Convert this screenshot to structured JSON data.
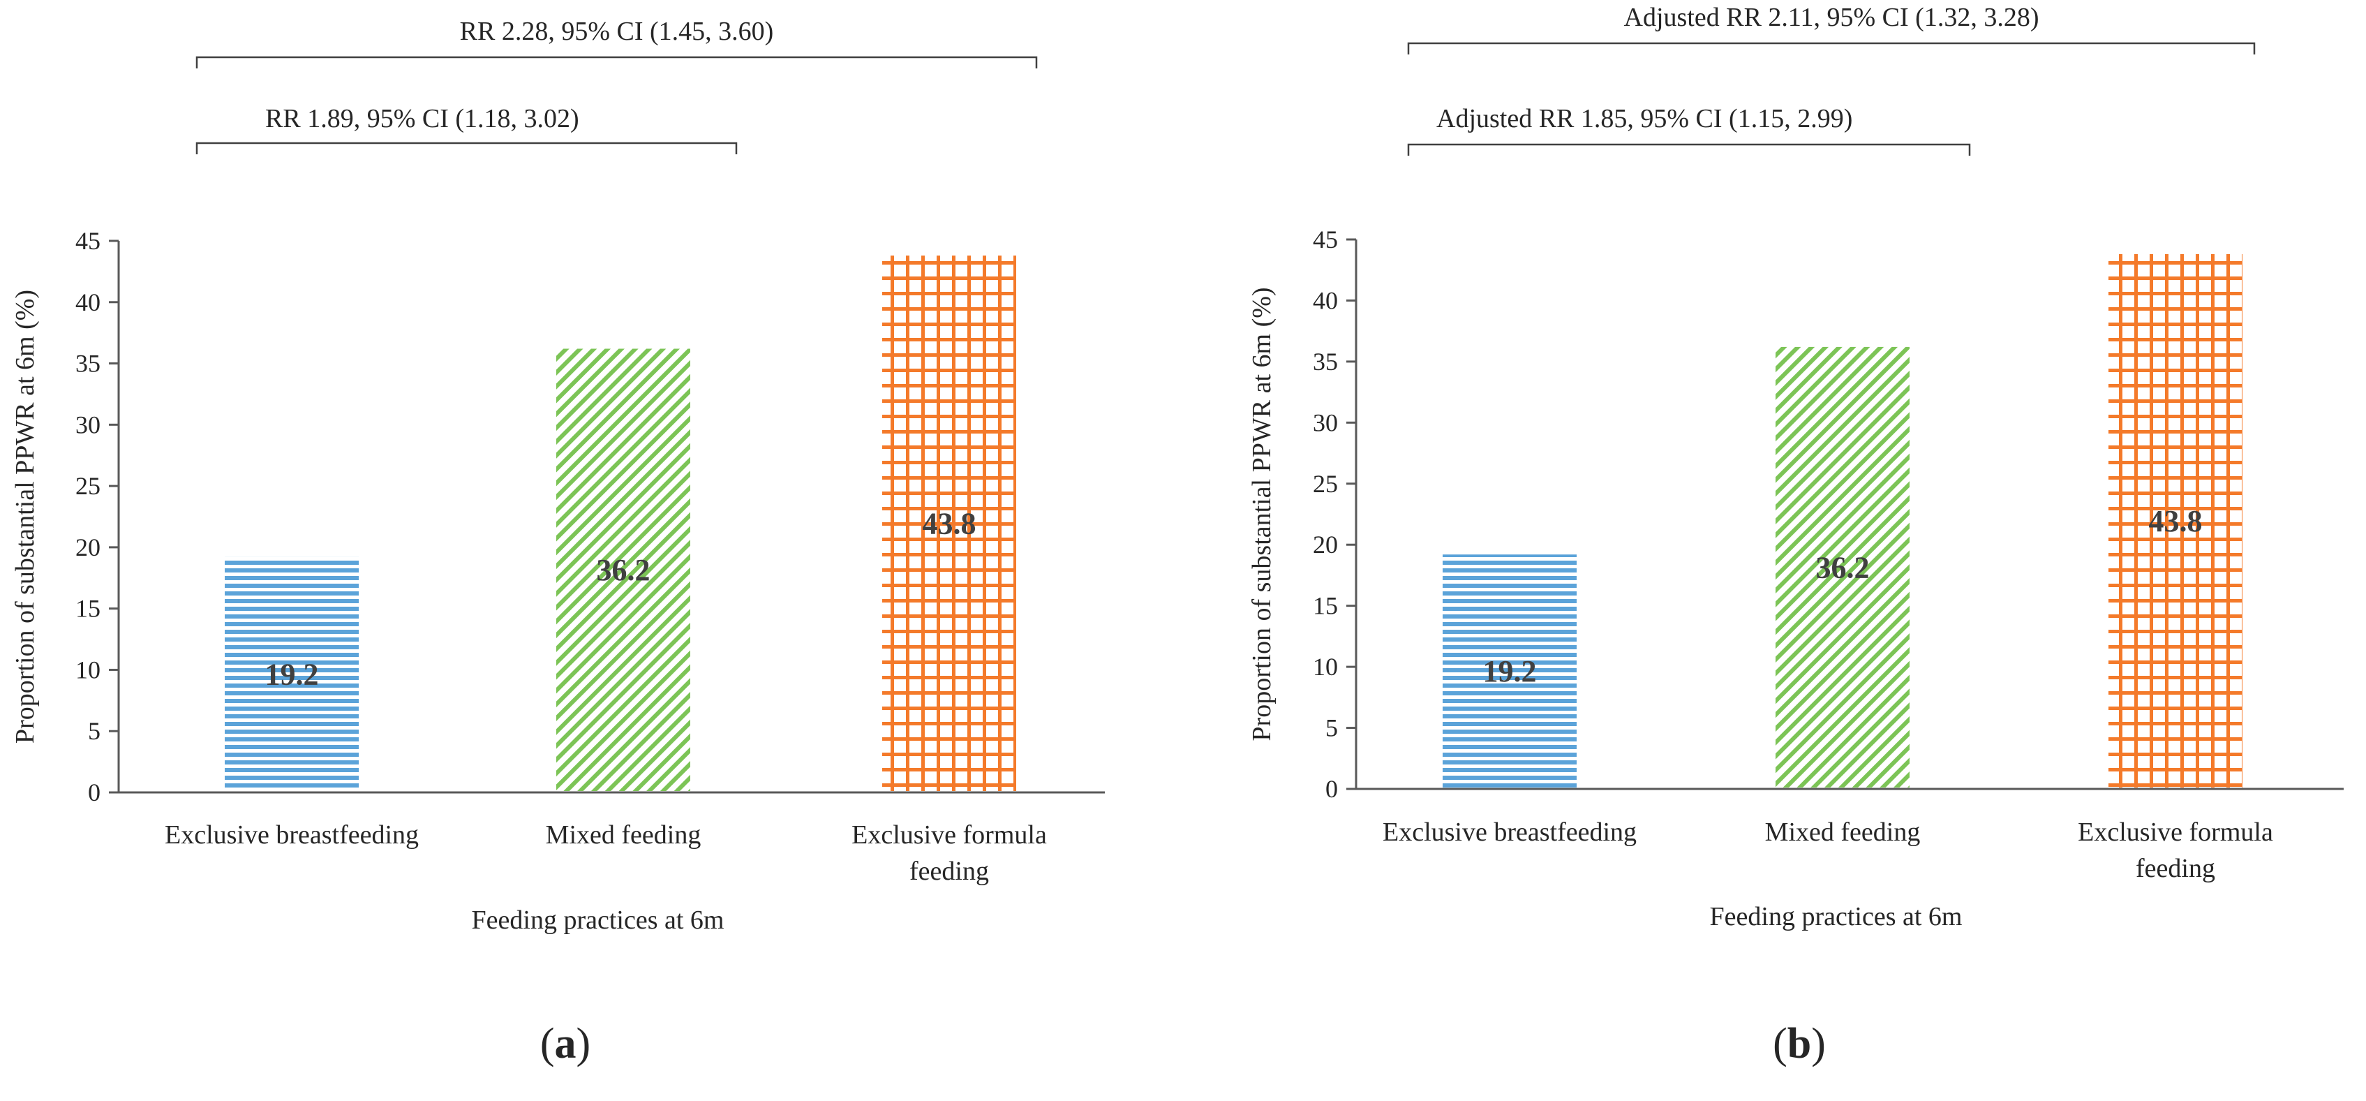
{
  "figure": {
    "panels": [
      {
        "panel_label": "a",
        "chart_data": {
          "type": "bar",
          "categories": [
            [
              "Exclusive breastfeeding"
            ],
            [
              "Mixed feeding"
            ],
            [
              "Exclusive formula",
              "feeding"
            ]
          ],
          "values": [
            19.2,
            36.2,
            43.8
          ],
          "value_labels": [
            "19.2",
            "36.2",
            "43.8"
          ],
          "title": "",
          "xlabel": "Feeding practices at 6m",
          "ylabel": "Proportion of substantial PPWR at 6m (%)",
          "ylim": [
            0,
            45
          ],
          "yticks": [
            0,
            5,
            10,
            15,
            20,
            25,
            30,
            35,
            40,
            45
          ],
          "grid": false,
          "comparisons": [
            {
              "from": 0,
              "to": 2,
              "label": "RR 2.28, 95% CI (1.45, 3.60)"
            },
            {
              "from": 0,
              "to": 1,
              "label": "RR 1.89, 95% CI (1.18, 3.02)"
            }
          ]
        }
      },
      {
        "panel_label": "b",
        "chart_data": {
          "type": "bar",
          "categories": [
            [
              "Exclusive breastfeeding"
            ],
            [
              "Mixed feeding"
            ],
            [
              "Exclusive formula",
              "feeding"
            ]
          ],
          "values": [
            19.2,
            36.2,
            43.8
          ],
          "value_labels": [
            "19.2",
            "36.2",
            "43.8"
          ],
          "title": "",
          "xlabel": "Feeding practices at 6m",
          "ylabel": "Proportion of substantial PPWR at 6m (%)",
          "ylim": [
            0,
            45
          ],
          "yticks": [
            0,
            5,
            10,
            15,
            20,
            25,
            30,
            35,
            40,
            45
          ],
          "grid": false,
          "comparisons": [
            {
              "from": 0,
              "to": 2,
              "label": "Adjusted RR 2.11, 95% CI (1.32, 3.28)"
            },
            {
              "from": 0,
              "to": 1,
              "label": "Adjusted RR 1.85, 95% CI (1.15, 2.99)"
            }
          ]
        }
      }
    ],
    "series_styles": [
      {
        "pattern": "horizontal-lines",
        "color": "#5ba3d9"
      },
      {
        "pattern": "diagonal-lines",
        "color": "#7cc456"
      },
      {
        "pattern": "grid",
        "color": "#f47a2a"
      }
    ]
  }
}
